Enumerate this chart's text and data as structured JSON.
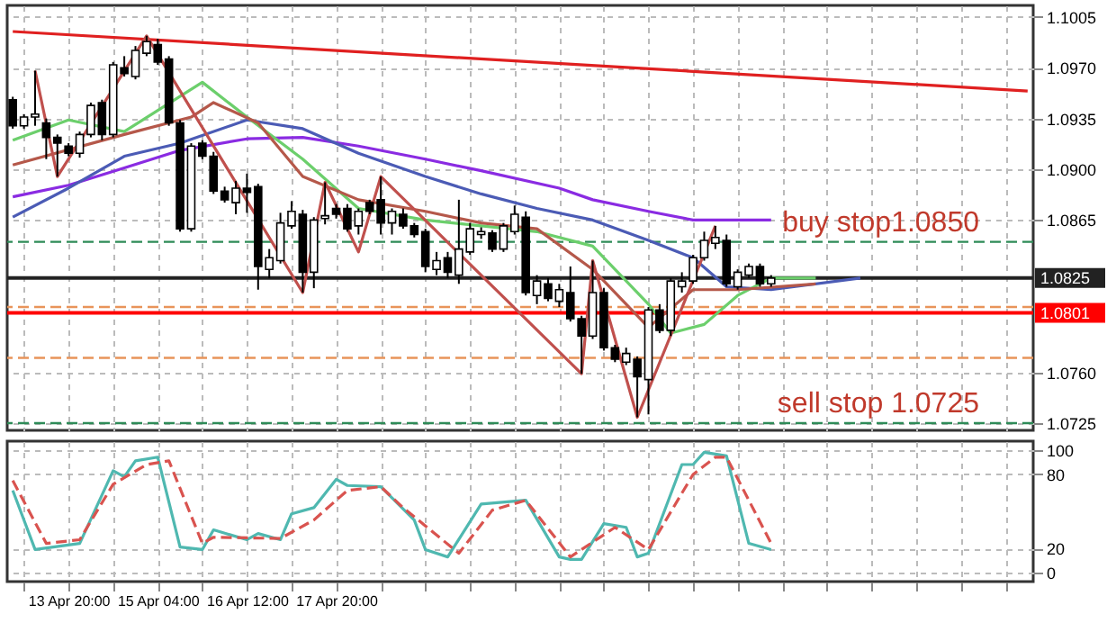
{
  "chart_data": [
    {
      "type": "candlestick",
      "categories": [
        null,
        null,
        null,
        null,
        null,
        null,
        null,
        null,
        null,
        null,
        null,
        null,
        null,
        null,
        null,
        null,
        null,
        null,
        null,
        null,
        null,
        null,
        null,
        null,
        null,
        null,
        null,
        null,
        null,
        null,
        null,
        null,
        null,
        null,
        null,
        null,
        null,
        null,
        null,
        null,
        null,
        null,
        null,
        null,
        null,
        null,
        null,
        null,
        null,
        null,
        null,
        null,
        null,
        null,
        null,
        null,
        null,
        null,
        null,
        null,
        null,
        null,
        null,
        null,
        null,
        null,
        null,
        null,
        null,
        null,
        null,
        null,
        null,
        null,
        null,
        null,
        null,
        null,
        null,
        null,
        null,
        null,
        null,
        null,
        null,
        null,
        null,
        null,
        null,
        null,
        null,
        null
      ],
      "ohlc": [
        [
          1.0948,
          1.095,
          1.0928,
          1.093
        ],
        [
          1.093,
          1.0938,
          1.0928,
          1.0936
        ],
        [
          1.0936,
          1.0968,
          1.093,
          1.0938
        ],
        [
          1.0932,
          1.0935,
          1.0907,
          1.0922
        ],
        [
          1.0922,
          1.0924,
          1.0895,
          1.0918
        ],
        [
          1.0916,
          1.0918,
          1.0909,
          1.0911
        ],
        [
          1.0911,
          1.0926,
          1.0908,
          1.0924
        ],
        [
          1.0924,
          1.0946,
          1.0922,
          1.0944
        ],
        [
          1.0946,
          1.0948,
          1.092,
          1.0924
        ],
        [
          1.0924,
          1.0974,
          1.0922,
          1.0972
        ],
        [
          1.097,
          1.0978,
          1.0964,
          1.0966
        ],
        [
          1.0964,
          1.0985,
          1.0962,
          1.0982
        ],
        [
          1.098,
          1.0992,
          1.0978,
          1.0988
        ],
        [
          1.0986,
          1.099,
          1.0972,
          1.0974
        ],
        [
          1.0976,
          1.0978,
          1.093,
          1.0932
        ],
        [
          1.0932,
          1.0934,
          1.0857,
          1.0859
        ],
        [
          1.0859,
          1.0918,
          1.0857,
          1.0916
        ],
        [
          1.0918,
          1.092,
          1.0907,
          1.0909
        ],
        [
          1.0909,
          1.0912,
          1.0883,
          1.0885
        ],
        [
          1.0885,
          1.0888,
          1.0877,
          1.0879
        ],
        [
          1.0877,
          1.0892,
          1.0869,
          1.0887
        ],
        [
          1.0887,
          1.0897,
          1.087,
          1.0884
        ],
        [
          1.0888,
          1.089,
          1.0817,
          1.0833
        ],
        [
          1.0831,
          1.0845,
          1.0825,
          1.0839
        ],
        [
          1.0837,
          1.087,
          1.0835,
          1.0863
        ],
        [
          1.0861,
          1.0878,
          1.0859,
          1.0871
        ],
        [
          1.0869,
          1.0872,
          1.0815,
          1.0829
        ],
        [
          1.0829,
          1.0867,
          1.0818,
          1.0865
        ],
        [
          1.0866,
          1.0891,
          1.0862,
          1.0868
        ],
        [
          1.0873,
          1.0876,
          1.0866,
          1.0869
        ],
        [
          1.0873,
          1.0876,
          1.0857,
          1.0859
        ],
        [
          1.0861,
          1.0873,
          1.0855,
          1.0871
        ],
        [
          1.0877,
          1.0879,
          1.0869,
          1.0871
        ],
        [
          1.0879,
          1.0895,
          1.0855,
          1.0863
        ],
        [
          1.0863,
          1.0873,
          1.0855,
          1.0871
        ],
        [
          1.0869,
          1.0873,
          1.0859,
          1.0861
        ],
        [
          1.0861,
          1.0863,
          1.0853,
          1.0855
        ],
        [
          1.0857,
          1.0859,
          1.0829,
          1.0833
        ],
        [
          1.0831,
          1.0843,
          1.0827,
          1.0837
        ],
        [
          1.0839,
          1.0843,
          1.0825,
          1.0829
        ],
        [
          1.0827,
          1.0879,
          1.0821,
          1.0845
        ],
        [
          1.0843,
          1.0863,
          1.0841,
          1.0859
        ],
        [
          1.0855,
          1.086,
          1.0852,
          1.0857
        ],
        [
          1.0856,
          1.0858,
          1.0843,
          1.0845
        ],
        [
          1.0845,
          1.0863,
          1.0843,
          1.0861
        ],
        [
          1.0857,
          1.0875,
          1.0855,
          1.0869
        ],
        [
          1.0867,
          1.0871,
          1.0813,
          1.0815
        ],
        [
          1.0813,
          1.0827,
          1.0807,
          1.0823
        ],
        [
          1.0821,
          1.0825,
          1.0809,
          1.0811
        ],
        [
          1.0809,
          1.0821,
          1.0805,
          1.0817
        ],
        [
          1.0815,
          1.0833,
          1.0795,
          1.0797
        ],
        [
          1.0797,
          1.0799,
          1.0759,
          1.0785
        ],
        [
          1.0785,
          1.0837,
          1.0783,
          1.0815
        ],
        [
          1.0815,
          1.0818,
          1.0775,
          1.0777
        ],
        [
          1.0777,
          1.0779,
          1.0767,
          1.0769
        ],
        [
          1.0767,
          1.0777,
          1.0765,
          1.0773
        ],
        [
          1.0769,
          1.0771,
          1.0729,
          1.0757
        ],
        [
          1.0755,
          1.0805,
          1.0731,
          1.0803
        ],
        [
          1.0803,
          1.0807,
          1.0787,
          1.0789
        ],
        [
          1.0789,
          1.0825,
          1.0785,
          1.0823
        ],
        [
          1.0819,
          1.0829,
          1.0815,
          1.0823
        ],
        [
          1.0823,
          1.0841,
          1.0821,
          1.0839
        ],
        [
          1.0839,
          1.0857,
          1.0837,
          1.0851
        ],
        [
          1.0849,
          1.0861,
          1.0845,
          1.0853
        ],
        [
          1.0851,
          1.0855,
          1.0819,
          1.0821
        ],
        [
          1.0819,
          1.0831,
          1.0817,
          1.0829
        ],
        [
          1.0827,
          1.0835,
          1.0825,
          1.0833
        ],
        [
          1.0833,
          1.0835,
          1.0819,
          1.0821
        ],
        [
          1.0821,
          1.0827,
          1.0819,
          1.0825
        ],
        null,
        null,
        null,
        null,
        null,
        null,
        null,
        null,
        null,
        null,
        null,
        null,
        null,
        null,
        null,
        null,
        null,
        null,
        null,
        null,
        null,
        null,
        null
      ],
      "series": [
        {
          "type": "line",
          "color": "#e02020",
          "values": [
            1.0995,
            null,
            null,
            null,
            null,
            null,
            null,
            null,
            null,
            null,
            null,
            null,
            null,
            null,
            null,
            null,
            null,
            null,
            null,
            null,
            null,
            null,
            null,
            null,
            null,
            null,
            null,
            null,
            null,
            null,
            null,
            null,
            null,
            null,
            null,
            null,
            null,
            null,
            null,
            null,
            null,
            null,
            null,
            null,
            null,
            null,
            null,
            null,
            null,
            null,
            null,
            null,
            null,
            null,
            null,
            null,
            null,
            null,
            null,
            null,
            null,
            null,
            null,
            null,
            null,
            null,
            null,
            null,
            null,
            null,
            null,
            null,
            null,
            null,
            null,
            null,
            null,
            null,
            null,
            null,
            null,
            null,
            null,
            null,
            null,
            null,
            null,
            null,
            null,
            null,
            null,
            1.0954
          ]
        },
        {
          "type": "line",
          "color": "#8a2be2",
          "values": [
            1.0881,
            null,
            null,
            null,
            null,
            1.0889,
            null,
            null,
            null,
            null,
            1.0901,
            null,
            null,
            null,
            null,
            1.0913,
            null,
            null,
            null,
            null,
            null,
            1.0921,
            null,
            null,
            null,
            null,
            1.0922,
            null,
            null,
            null,
            null,
            1.0916,
            null,
            null,
            null,
            null,
            null,
            1.0907,
            null,
            null,
            null,
            null,
            1.0899,
            null,
            null,
            null,
            null,
            null,
            null,
            1.0887,
            null,
            null,
            1.0879,
            null,
            null,
            null,
            null,
            1.0871,
            null,
            null,
            null,
            1.0865,
            null,
            null,
            null,
            null,
            null,
            null,
            1.0865,
            null,
            null,
            null,
            null,
            null,
            null,
            null,
            null,
            null,
            null,
            null,
            null,
            null,
            null,
            null,
            null,
            null,
            null,
            null,
            null,
            null,
            null,
            null
          ]
        },
        {
          "type": "line",
          "color": "#4b5bb5",
          "values": [
            1.0867,
            null,
            null,
            null,
            null,
            1.0887,
            null,
            null,
            null,
            null,
            1.0909,
            null,
            null,
            null,
            null,
            1.0918,
            null,
            null,
            null,
            null,
            null,
            1.0934,
            null,
            null,
            null,
            null,
            1.0928,
            null,
            null,
            null,
            null,
            1.0911,
            null,
            null,
            null,
            null,
            null,
            1.0895,
            null,
            null,
            null,
            null,
            1.0883,
            null,
            null,
            null,
            null,
            1.0873,
            null,
            null,
            null,
            null,
            1.0865,
            null,
            null,
            null,
            null,
            1.0851,
            null,
            null,
            null,
            1.0839,
            null,
            null,
            1.0819,
            null,
            null,
            null,
            1.0817,
            null,
            null,
            null,
            null,
            null,
            null,
            null,
            1.0825,
            null,
            null,
            null,
            null,
            null,
            null,
            null,
            null,
            null,
            null,
            null,
            null,
            null,
            null,
            null
          ]
        },
        {
          "type": "line",
          "color": "#6ccf6c",
          "values": [
            1.092,
            null,
            null,
            null,
            null,
            1.0934,
            null,
            null,
            null,
            null,
            1.0926,
            null,
            null,
            null,
            null,
            null,
            null,
            1.096,
            null,
            null,
            null,
            1.0936,
            null,
            null,
            null,
            null,
            1.0907,
            null,
            null,
            null,
            null,
            1.0873,
            null,
            null,
            null,
            null,
            null,
            1.0865,
            null,
            null,
            null,
            null,
            1.0861,
            null,
            null,
            null,
            null,
            1.0857,
            null,
            null,
            null,
            null,
            1.0847,
            null,
            null,
            null,
            null,
            1.0807,
            null,
            1.0787,
            null,
            null,
            1.0793,
            null,
            null,
            1.0813,
            null,
            null,
            1.0825,
            null,
            null,
            null,
            1.0825,
            null,
            null,
            null,
            null,
            null,
            null,
            null,
            null,
            null,
            null,
            null,
            null,
            null,
            null,
            null,
            null,
            null,
            null,
            null
          ]
        },
        {
          "type": "line",
          "color": "#b5584a",
          "values": [
            1.0903,
            null,
            null,
            null,
            null,
            null,
            null,
            null,
            null,
            null,
            1.0924,
            null,
            null,
            null,
            null,
            null,
            1.0936,
            null,
            1.0946,
            null,
            null,
            null,
            1.0932,
            null,
            null,
            null,
            1.0895,
            null,
            null,
            null,
            null,
            1.0879,
            null,
            null,
            null,
            null,
            null,
            1.0871,
            null,
            null,
            null,
            null,
            1.0863,
            null,
            null,
            null,
            null,
            1.0859,
            null,
            null,
            null,
            null,
            1.0831,
            null,
            null,
            null,
            null,
            1.0791,
            null,
            null,
            null,
            1.0817,
            null,
            null,
            null,
            1.0817,
            null,
            null,
            null,
            null,
            null,
            null,
            1.0821,
            null,
            null,
            null,
            null,
            null,
            null,
            null,
            null,
            null,
            null,
            null,
            null,
            null,
            null,
            null,
            null,
            null,
            null,
            null
          ]
        },
        {
          "type": "line",
          "color": "#c0504d",
          "values": [
            null,
            null,
            1.0968,
            null,
            1.0895,
            null,
            null,
            null,
            null,
            null,
            null,
            null,
            1.0992,
            null,
            null,
            null,
            null,
            null,
            null,
            null,
            null,
            null,
            null,
            null,
            null,
            null,
            1.0815,
            null,
            1.0891,
            null,
            null,
            1.0843,
            null,
            1.0895,
            null,
            null,
            null,
            null,
            null,
            null,
            null,
            null,
            null,
            null,
            null,
            null,
            null,
            null,
            null,
            null,
            null,
            1.0759,
            1.0837,
            null,
            null,
            null,
            1.0729,
            null,
            null,
            null,
            null,
            null,
            null,
            1.0861,
            null,
            null,
            null,
            null,
            null,
            null,
            null,
            null,
            null,
            null,
            null,
            null,
            null,
            null,
            null,
            null,
            null,
            null,
            null,
            null,
            null,
            null,
            null,
            null,
            null,
            null,
            null,
            null
          ]
        }
      ],
      "ylim": [
        1.072,
        1.1013
      ],
      "yticks": [
        1.1005,
        {
          "value": 1.097,
          "label": "1.0970"
        },
        1.0935,
        {
          "value": 1.09,
          "label": "1.0900"
        },
        1.0865,
        {
          "value": 1.076,
          "label": "1.0760"
        },
        1.0725
      ],
      "ref_lines": [
        {
          "axis": "y",
          "value": 1.085,
          "label": "buy stop1.0850",
          "color": "#2e8b57",
          "line_style": "dashed"
        },
        {
          "axis": "y",
          "value": 1.0725,
          "label": "sell stop 1.0725",
          "color": "#2e8b57",
          "line_style": "dashed"
        },
        {
          "axis": "y",
          "value": 1.0805,
          "color": "#e8945a",
          "line_style": "dashed"
        },
        {
          "axis": "y",
          "value": 1.077,
          "color": "#e8945a",
          "line_style": "dashed"
        },
        {
          "axis": "y",
          "value": 1.0825,
          "label": "1.0825",
          "color": "#222222",
          "line_style": "solid"
        },
        {
          "axis": "y",
          "value": 1.0801,
          "label": "1.0801",
          "color": "#ff0000",
          "line_style": "solid"
        }
      ],
      "grid": true,
      "tick_labels": "y"
    },
    {
      "type": "line",
      "categories": [
        null,
        null,
        null,
        null,
        null,
        "13 Apr 20:00",
        null,
        null,
        null,
        null,
        null,
        null,
        null,
        "15 Apr 04:00",
        null,
        null,
        null,
        null,
        null,
        null,
        null,
        "16 Apr 12:00",
        null,
        null,
        null,
        null,
        null,
        null,
        null,
        "17 Apr 20:00",
        null,
        null,
        null,
        null,
        null,
        null,
        null,
        null,
        null,
        null,
        null,
        null,
        null,
        null,
        null,
        null,
        null,
        null,
        null,
        null,
        null,
        null,
        null,
        null,
        null,
        null,
        null,
        null,
        null,
        null,
        null,
        null,
        null,
        null,
        null,
        null,
        null,
        null,
        null,
        null,
        null,
        null,
        null,
        null,
        null,
        null,
        null,
        null,
        null,
        null,
        null,
        null,
        null,
        null,
        null,
        null,
        null,
        null,
        null,
        null,
        null,
        null
      ],
      "series": [
        {
          "color": "#4fb8b0",
          "values": [
            67,
            null,
            19,
            null,
            null,
            null,
            24,
            null,
            null,
            83,
            78,
            91,
            null,
            94,
            null,
            21,
            null,
            19,
            35,
            null,
            null,
            27,
            32,
            null,
            27,
            48,
            null,
            53,
            null,
            76,
            71,
            null,
            null,
            70,
            null,
            null,
            43,
            19,
            null,
            13,
            null,
            null,
            56,
            null,
            null,
            null,
            59,
            null,
            null,
            13,
            11,
            11,
            null,
            40,
            null,
            37,
            13,
            16,
            null,
            null,
            88,
            88,
            98,
            null,
            95,
            null,
            24,
            null,
            19,
            null,
            null,
            null,
            null,
            null,
            null,
            null,
            null,
            null,
            null,
            null,
            null,
            null,
            null,
            null,
            null,
            null,
            null,
            null,
            null,
            null,
            null,
            null
          ]
        },
        {
          "color": "#d9534f",
          "line_style": "dashed",
          "values": [
            75,
            null,
            null,
            24,
            null,
            null,
            27,
            null,
            null,
            72,
            null,
            null,
            88,
            null,
            91,
            null,
            null,
            24,
            29,
            null,
            null,
            null,
            null,
            null,
            28,
            null,
            null,
            43,
            null,
            null,
            67,
            null,
            null,
            70,
            null,
            53,
            null,
            null,
            null,
            null,
            16,
            null,
            null,
            51,
            null,
            null,
            59,
            null,
            null,
            null,
            13,
            null,
            null,
            null,
            37,
            null,
            null,
            19,
            null,
            null,
            null,
            80,
            null,
            94,
            94,
            null,
            null,
            null,
            24,
            null,
            null,
            null,
            null,
            null,
            null,
            null,
            null,
            null,
            null,
            null,
            null,
            null,
            null,
            null,
            null,
            null,
            null,
            null,
            null,
            null,
            null,
            null
          ]
        }
      ],
      "ylim": [
        -7,
        107
      ],
      "yticks": [
        0,
        20,
        80,
        100
      ],
      "grid": true
    }
  ]
}
